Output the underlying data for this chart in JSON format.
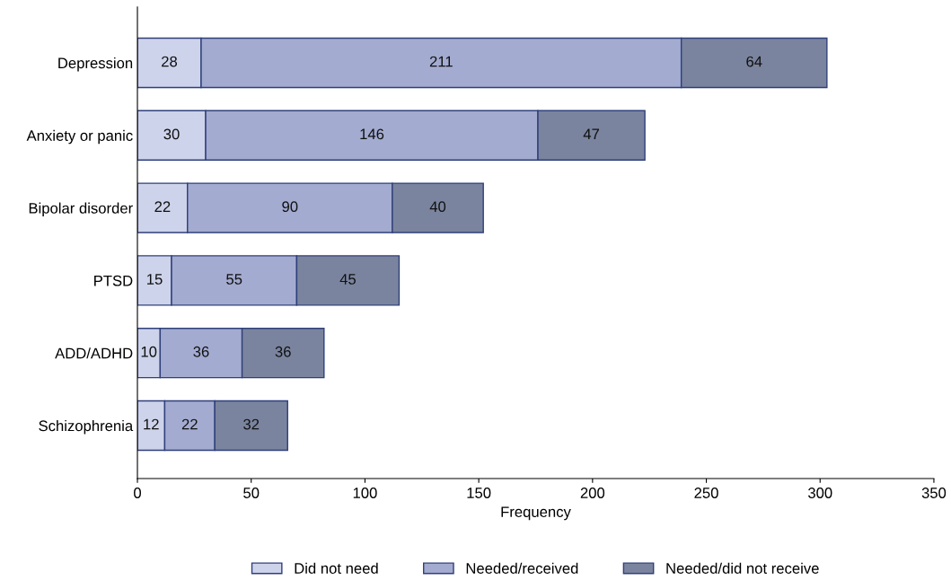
{
  "chart_data": {
    "type": "bar",
    "orientation": "horizontal",
    "stacked": true,
    "xlabel": "Frequency",
    "categories": [
      "Depression",
      "Anxiety or panic",
      "Bipolar disorder",
      "PTSD",
      "ADD/ADHD",
      "Schizophrenia"
    ],
    "series": [
      {
        "name": "Did not need",
        "color": "#cdd3ea",
        "values": [
          28,
          30,
          22,
          15,
          10,
          12
        ]
      },
      {
        "name": "Needed/received",
        "color": "#a3abd0",
        "values": [
          211,
          146,
          90,
          55,
          36,
          22
        ]
      },
      {
        "name": "Needed/did not receive",
        "color": "#7a849e",
        "values": [
          64,
          47,
          40,
          45,
          36,
          32
        ]
      }
    ],
    "xlim": [
      0,
      350
    ],
    "xticks": [
      0,
      50,
      100,
      150,
      200,
      250,
      300,
      350
    ],
    "data_labels": true,
    "legend": "bottom",
    "grid": false
  }
}
